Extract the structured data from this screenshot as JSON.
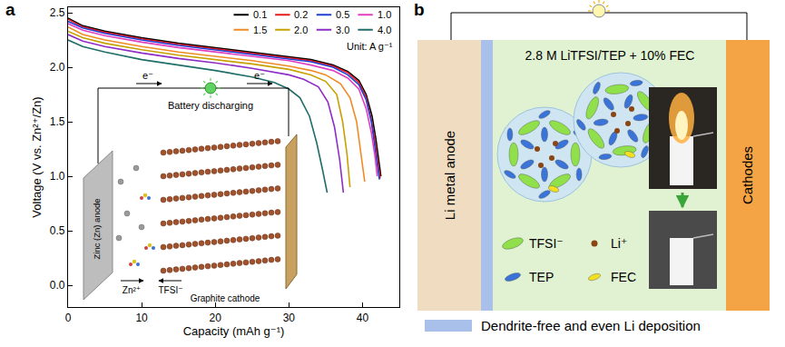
{
  "chart_data": {
    "type": "line",
    "panel_label": "a",
    "x_label": "Capacity (mAh g⁻¹)",
    "y_label": "Voltage (V vs. Zn²⁺/Zn)",
    "xlim": [
      0,
      45
    ],
    "xticks": [
      0,
      10,
      20,
      30,
      40
    ],
    "ylim": [
      -0.2,
      2.55
    ],
    "yticks": [
      {
        "value": 0,
        "label": "0.0"
      },
      0.5,
      {
        "value": 1,
        "label": "1.0"
      },
      1.5,
      {
        "value": 2,
        "label": "2.0"
      },
      2.5
    ],
    "grid": false,
    "legend": "upper right",
    "annotations": [
      "Unit: A g⁻¹"
    ],
    "inset": {
      "circuit": "Battery discharging",
      "electron": "e⁻",
      "anode": "Zinc (Zn) anode",
      "cathode": "Graphite cathode",
      "cation": "Zn²⁺",
      "anion": "TFSI⁻"
    },
    "series": [
      {
        "name": "0.1",
        "color": "#000000",
        "x": [
          0,
          2,
          5,
          10,
          15,
          20,
          25,
          30,
          33,
          36,
          38,
          39.5,
          40.5,
          41.3,
          41.8,
          42.2,
          42.5
        ],
        "values": [
          2.45,
          2.38,
          2.33,
          2.27,
          2.22,
          2.18,
          2.14,
          2.1,
          2.07,
          2.02,
          1.96,
          1.88,
          1.75,
          1.55,
          1.35,
          1.15,
          1.0
        ]
      },
      {
        "name": "0.2",
        "color": "#e41a1c",
        "x": [
          0,
          2,
          5,
          10,
          15,
          20,
          25,
          30,
          33,
          36,
          38,
          39.5,
          40.5,
          41.2,
          41.7,
          42.1,
          42.4
        ],
        "values": [
          2.44,
          2.37,
          2.32,
          2.26,
          2.21,
          2.17,
          2.13,
          2.09,
          2.06,
          2.01,
          1.95,
          1.86,
          1.72,
          1.52,
          1.32,
          1.12,
          0.98
        ]
      },
      {
        "name": "0.5",
        "color": "#1f3fd6",
        "x": [
          0,
          2,
          5,
          10,
          15,
          20,
          25,
          30,
          33,
          36,
          38,
          39.5,
          40.5,
          41.2,
          41.6,
          42.0,
          42.3
        ],
        "values": [
          2.42,
          2.36,
          2.31,
          2.25,
          2.2,
          2.16,
          2.12,
          2.08,
          2.05,
          2.0,
          1.93,
          1.84,
          1.7,
          1.5,
          1.3,
          1.1,
          0.97
        ]
      },
      {
        "name": "1.0",
        "color": "#e040c0",
        "x": [
          0,
          2,
          5,
          10,
          15,
          20,
          25,
          30,
          33,
          36,
          38,
          39.5,
          40.5,
          41.2,
          41.7,
          42.0
        ],
        "values": [
          2.4,
          2.34,
          2.29,
          2.23,
          2.18,
          2.14,
          2.1,
          2.06,
          2.02,
          1.97,
          1.9,
          1.8,
          1.62,
          1.4,
          1.18,
          1.0
        ]
      },
      {
        "name": "1.5",
        "color": "#f08a24",
        "x": [
          0,
          2,
          5,
          10,
          15,
          20,
          25,
          30,
          33,
          35,
          37,
          38.3,
          39.2,
          39.8,
          40.3
        ],
        "values": [
          2.37,
          2.3,
          2.25,
          2.19,
          2.14,
          2.1,
          2.06,
          2.01,
          1.97,
          1.93,
          1.85,
          1.72,
          1.5,
          1.2,
          0.95
        ]
      },
      {
        "name": "2.0",
        "color": "#c8a000",
        "x": [
          0,
          2,
          5,
          10,
          15,
          20,
          25,
          30,
          33,
          35,
          36.5,
          37.3,
          37.9,
          38.3
        ],
        "values": [
          2.33,
          2.27,
          2.22,
          2.16,
          2.11,
          2.07,
          2.03,
          1.98,
          1.93,
          1.87,
          1.75,
          1.5,
          1.2,
          0.9
        ]
      },
      {
        "name": "3.0",
        "color": "#8e2cc8",
        "x": [
          0,
          2,
          5,
          10,
          15,
          20,
          25,
          30,
          32,
          34,
          35.3,
          36.2,
          36.9,
          37.4
        ],
        "values": [
          2.3,
          2.24,
          2.19,
          2.13,
          2.08,
          2.04,
          1.99,
          1.93,
          1.89,
          1.82,
          1.68,
          1.45,
          1.15,
          0.85
        ]
      },
      {
        "name": "4.0",
        "color": "#1f6e6a",
        "x": [
          0,
          2,
          5,
          10,
          15,
          20,
          25,
          28,
          30,
          31.5,
          32.8,
          33.8,
          34.6,
          35.2
        ],
        "values": [
          2.25,
          2.19,
          2.14,
          2.07,
          2.02,
          1.97,
          1.91,
          1.86,
          1.8,
          1.72,
          1.55,
          1.3,
          1.05,
          0.85
        ]
      }
    ]
  },
  "panel_b": {
    "label": "b",
    "electrolyte": "2.8 M LiTFSI/TEP + 10% FEC",
    "anode": "Li metal anode",
    "cathode": "Cathodes",
    "species": [
      "TFSI⁻",
      "Li⁺",
      "TEP",
      "FEC"
    ],
    "caption": "Dendrite-free and even Li deposition"
  }
}
